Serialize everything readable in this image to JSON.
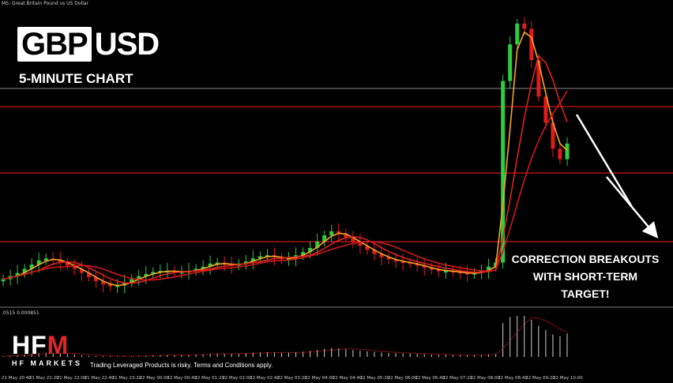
{
  "header": {
    "symbol_caption": "MS: Great Britain Pound vs US Dollar",
    "title_highlight": "GBP",
    "title_rest": "USD",
    "subtitle": "5-MINUTE CHART"
  },
  "annotation": {
    "lines": [
      "CORRECTION BREAKOUTS",
      "WITH SHORT-TERM",
      "TARGET!"
    ]
  },
  "indicator": {
    "label": ".0515 0.000851"
  },
  "brand": {
    "logo_text_1": "HF",
    "logo_text_2": "M",
    "logo_sub": "HF MARKETS",
    "disclaimer": "Trading Leveraged Products is risky. Terms and Conditions apply."
  },
  "colors": {
    "background": "#000000",
    "bull_candle": "#2ecc40",
    "bear_candle": "#e01b1b",
    "ma_fast": "#f5a623",
    "ma_mid": "#e02020",
    "ma_slow": "#d01818",
    "level_line": "#c8181a",
    "grey_level": "#6e6e6e",
    "arrow": "#ffffff"
  },
  "chart_data": {
    "type": "candlestick",
    "instrument": "GBPUSD",
    "timeframe": "5-minute",
    "horizontal_levels": [
      {
        "kind": "grey",
        "y_frac": 0.0
      },
      {
        "kind": "red",
        "y_frac": 0.0
      },
      {
        "kind": "red",
        "y_frac": 0.0
      },
      {
        "kind": "red",
        "y_frac": 0.0
      }
    ],
    "x_tick_labels": [
      "21 May 20:40",
      "21 May 21:20",
      "21 May 22:00",
      "21 May 22:40",
      "21 May 23:20",
      "22 May 00:00",
      "22 May 00:40",
      "22 May 01:20",
      "22 May 02:00",
      "22 May 02:40",
      "22 May 03:20",
      "22 May 04:00",
      "22 May 04:40",
      "22 May 05:20",
      "22 May 06:00",
      "22 May 06:40",
      "22 May 07:20",
      "22 May 08:00",
      "22 May 08:40",
      "22 May 09:20",
      "22 May 10:00"
    ],
    "price_path": [
      0.3,
      0.33,
      0.36,
      0.4,
      0.44,
      0.48,
      0.5,
      0.49,
      0.46,
      0.43,
      0.4,
      0.36,
      0.32,
      0.28,
      0.25,
      0.23,
      0.24,
      0.27,
      0.3,
      0.33,
      0.35,
      0.37,
      0.38,
      0.38,
      0.37,
      0.37,
      0.38,
      0.4,
      0.42,
      0.45,
      0.46,
      0.44,
      0.43,
      0.45,
      0.47,
      0.5,
      0.52,
      0.53,
      0.51,
      0.49,
      0.5,
      0.53,
      0.56,
      0.6,
      0.66,
      0.72,
      0.76,
      0.74,
      0.7,
      0.66,
      0.62,
      0.58,
      0.54,
      0.51,
      0.49,
      0.47,
      0.46,
      0.45,
      0.43,
      0.41,
      0.39,
      0.38,
      0.38,
      0.37,
      0.36,
      0.35,
      0.36,
      0.38,
      0.42,
      0.46,
      2.2,
      2.55,
      2.75,
      2.7,
      2.4,
      2.05,
      1.8,
      1.55,
      1.45,
      1.6
    ]
  }
}
